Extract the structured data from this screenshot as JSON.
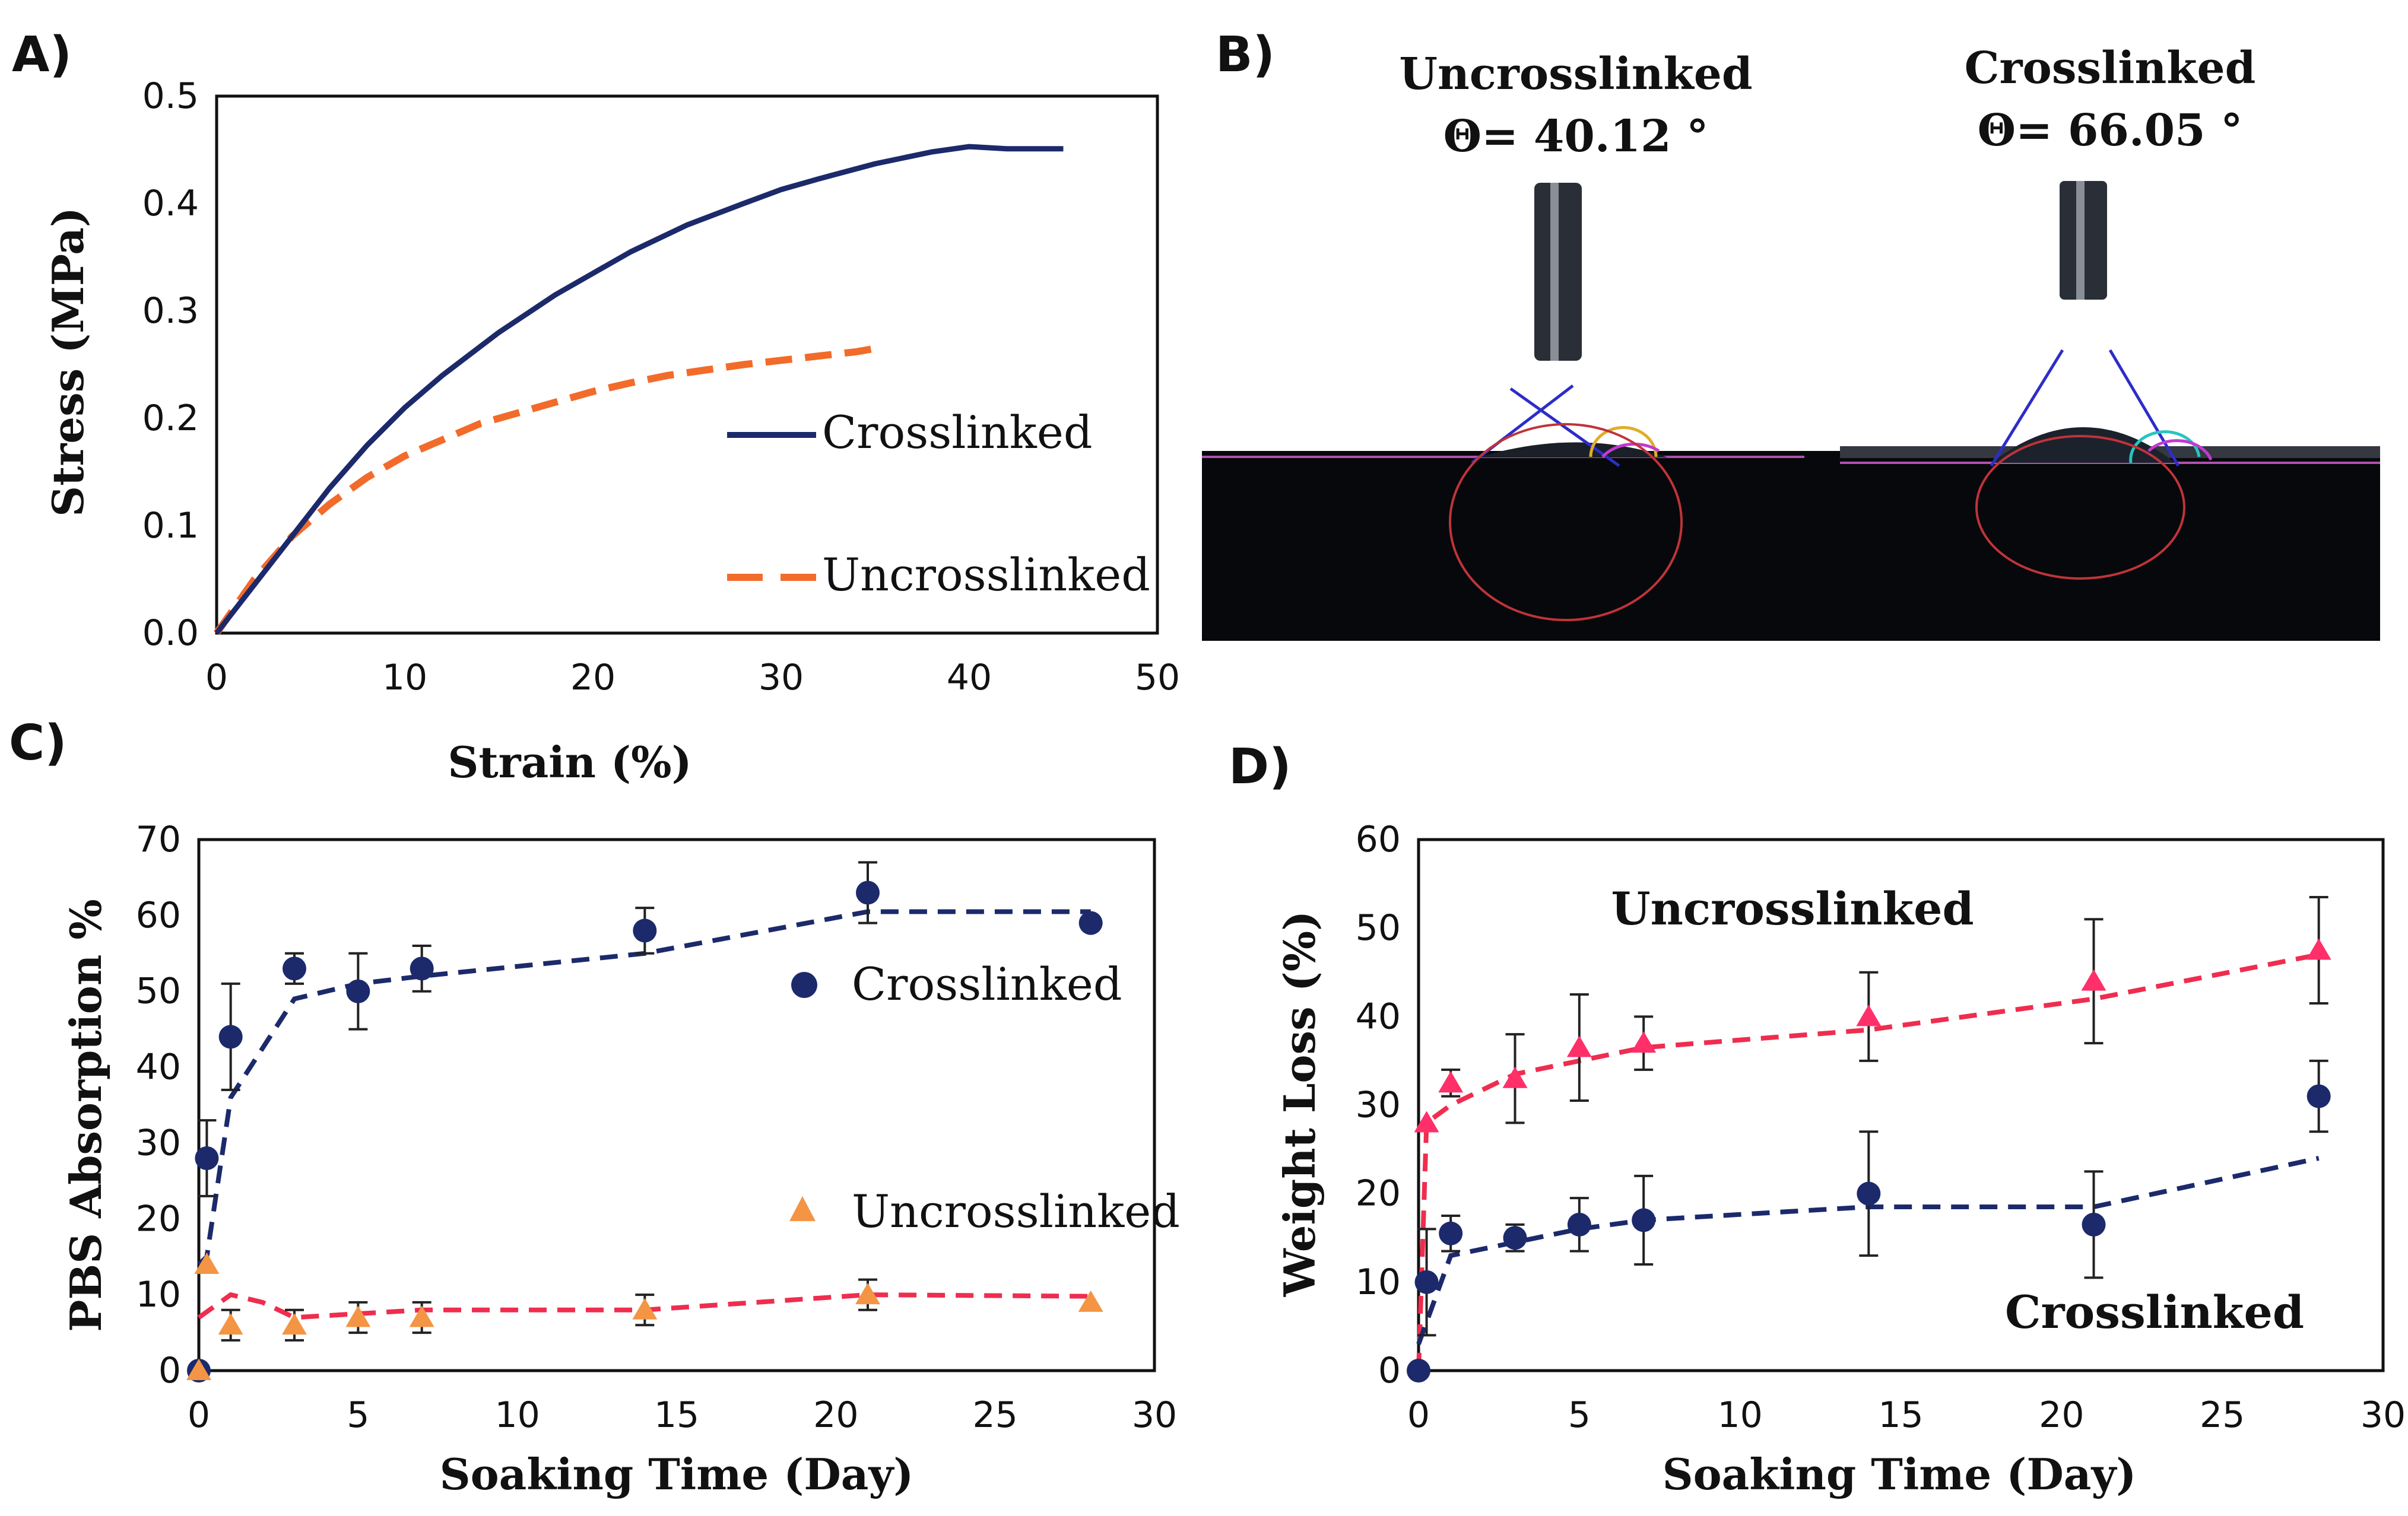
{
  "panels": {
    "a": "A)",
    "b": "B)",
    "c": "C)",
    "d": "D)"
  },
  "contact_angle": {
    "uncrosslinked_title": "Uncrosslinked",
    "uncrosslinked_angle": "Θ= 40.12 °",
    "crosslinked_title": "Crosslinked",
    "crosslinked_angle": "Θ= 66.05 °"
  },
  "colors": {
    "navy": "#1c2a6b",
    "orange": "#f26b2a",
    "orange_marker": "#f39544",
    "red": "#ef2d4f",
    "pink_marker": "#ff2f6a"
  },
  "chart_data": [
    {
      "id": "A",
      "type": "line",
      "xlabel": "Strain (%)",
      "ylabel": "Stress (MPa)",
      "xlim": [
        0,
        50
      ],
      "ylim": [
        0,
        0.5
      ],
      "xticks": [
        0,
        10,
        20,
        30,
        40,
        50
      ],
      "yticks": [
        0,
        0.1,
        0.2,
        0.3,
        0.4,
        0.5
      ],
      "ytick_labels": [
        "0.0",
        "0.1",
        "0.2",
        "0.3",
        "0.4",
        "0.5"
      ],
      "legend_position": "right",
      "series": [
        {
          "name": "Crosslinked",
          "style": "solid",
          "x": [
            0,
            2,
            4,
            6,
            8,
            10,
            12,
            15,
            18,
            20,
            22,
            25,
            28,
            30,
            32,
            35,
            38,
            40,
            42,
            45
          ],
          "y": [
            0,
            0.045,
            0.09,
            0.135,
            0.175,
            0.21,
            0.24,
            0.28,
            0.315,
            0.335,
            0.355,
            0.38,
            0.4,
            0.413,
            0.423,
            0.437,
            0.448,
            0.453,
            0.451,
            0.451
          ]
        },
        {
          "name": "Uncrosslinked",
          "style": "dashed",
          "x": [
            0,
            2,
            4,
            6,
            8,
            10,
            12,
            14,
            16,
            18,
            20,
            22,
            24,
            26,
            28,
            30,
            32,
            34,
            35
          ],
          "y": [
            0,
            0.05,
            0.09,
            0.12,
            0.145,
            0.165,
            0.18,
            0.195,
            0.205,
            0.215,
            0.225,
            0.233,
            0.24,
            0.245,
            0.25,
            0.254,
            0.258,
            0.262,
            0.265
          ]
        }
      ]
    },
    {
      "id": "C",
      "type": "scatter",
      "xlabel": "Soaking Time (Day)",
      "ylabel": "PBS Absorption %",
      "xlim": [
        0,
        30
      ],
      "ylim": [
        0,
        70
      ],
      "xticks": [
        0,
        5,
        10,
        15,
        20,
        25,
        30
      ],
      "yticks": [
        0,
        10,
        20,
        30,
        40,
        50,
        60,
        70
      ],
      "legend_position": "right",
      "series": [
        {
          "name": "Crosslinked",
          "marker": "circle",
          "x": [
            0,
            0.25,
            1,
            3,
            5,
            7,
            14,
            21,
            28
          ],
          "y": [
            0,
            28,
            44,
            53,
            50,
            53,
            58,
            63,
            59
          ],
          "err": [
            0,
            5,
            7,
            2,
            5,
            3,
            3,
            4,
            0
          ],
          "trend_x": [
            0,
            0.25,
            1,
            3,
            5,
            7,
            14,
            21,
            28
          ],
          "trend_y": [
            14,
            15,
            36,
            49,
            51,
            52,
            55,
            60.5,
            60.5
          ]
        },
        {
          "name": "Uncrosslinked",
          "marker": "triangle",
          "x": [
            0,
            0.25,
            1,
            3,
            5,
            7,
            14,
            21,
            28
          ],
          "y": [
            0,
            14,
            6,
            6,
            7,
            7,
            8,
            10,
            9
          ],
          "err": [
            0,
            0,
            2,
            2,
            2,
            2,
            2,
            2,
            0
          ],
          "trend_x": [
            0,
            1,
            2,
            3,
            5,
            7,
            14,
            21,
            28
          ],
          "trend_y": [
            7,
            10,
            9,
            7,
            7.5,
            8,
            8,
            10,
            9.8
          ]
        }
      ]
    },
    {
      "id": "D",
      "type": "scatter",
      "xlabel": "Soaking Time (Day)",
      "ylabel": "Weight Loss (%)",
      "xlim": [
        0,
        30
      ],
      "ylim": [
        0,
        60
      ],
      "xticks": [
        0,
        5,
        10,
        15,
        20,
        25,
        30
      ],
      "yticks": [
        0,
        10,
        20,
        30,
        40,
        50,
        60
      ],
      "series": [
        {
          "name": "Uncrosslinked",
          "marker": "triangle",
          "x": [
            0.25,
            1,
            3,
            5,
            7,
            14,
            21,
            28
          ],
          "y": [
            28,
            32.5,
            33,
            36.5,
            37,
            40,
            44,
            47.5
          ],
          "err": [
            0,
            1.5,
            5,
            6,
            3,
            5,
            7,
            6
          ],
          "trend_x": [
            0,
            0.25,
            1,
            3,
            5,
            7,
            14,
            21,
            28
          ],
          "trend_y": [
            0,
            28,
            30,
            33.5,
            35,
            36.5,
            38.5,
            42,
            47
          ]
        },
        {
          "name": "Crosslinked",
          "marker": "circle",
          "x": [
            0,
            0.25,
            1,
            3,
            5,
            7,
            14,
            21,
            28
          ],
          "y": [
            0,
            10,
            15.5,
            15,
            16.5,
            17,
            20,
            16.5,
            31
          ],
          "err": [
            0,
            6,
            2,
            1.5,
            3,
            5,
            7,
            6,
            4
          ],
          "trend_x": [
            0,
            1,
            3,
            5,
            7,
            14,
            21,
            28
          ],
          "trend_y": [
            3,
            13,
            14.5,
            16,
            17,
            18.5,
            18.5,
            24
          ]
        }
      ]
    }
  ]
}
